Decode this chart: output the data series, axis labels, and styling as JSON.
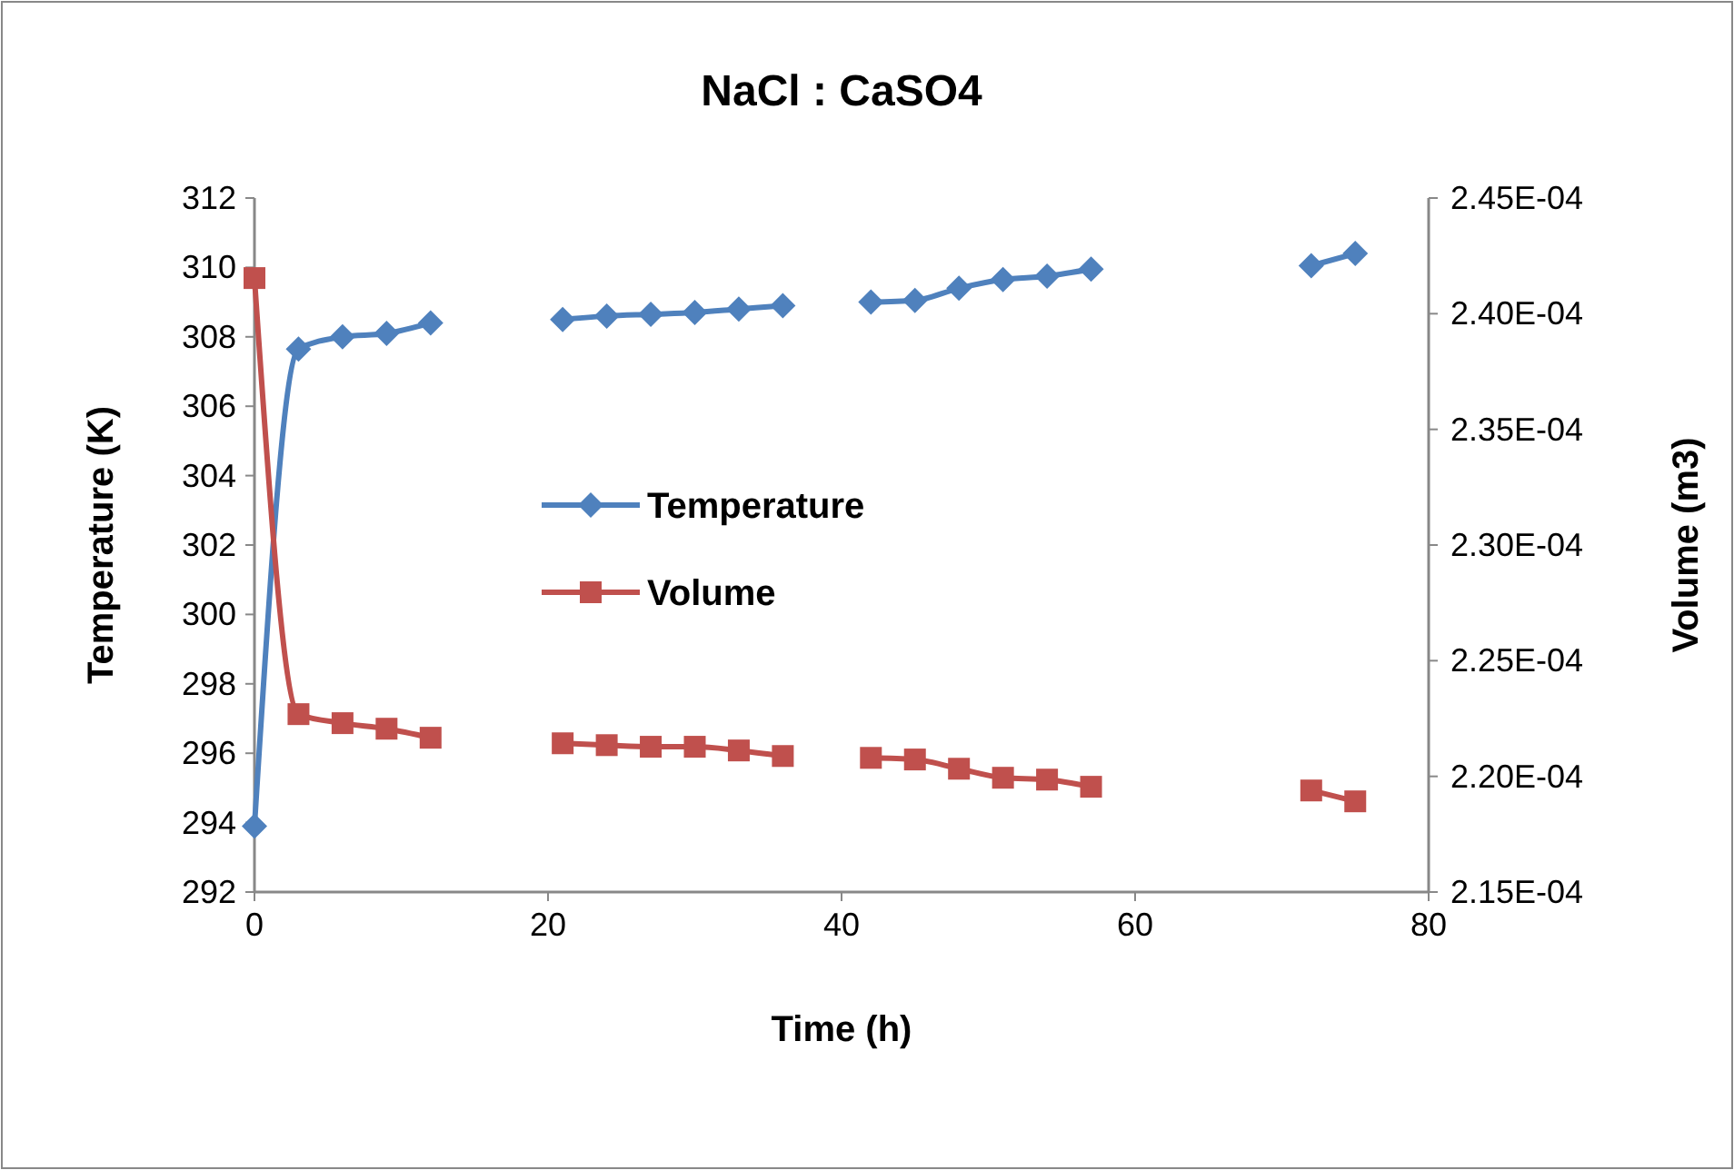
{
  "chart_data": {
    "type": "line",
    "title": "NaCl : CaSO4",
    "xlabel": "Time (h)",
    "ylabel": "Temperature (K)",
    "y2label": "Volume (m3)",
    "x": [
      0,
      3,
      6,
      9,
      12,
      15,
      18,
      21,
      24,
      27,
      30,
      33,
      36,
      39,
      42,
      45,
      48,
      51,
      54,
      57,
      60,
      63,
      66,
      69,
      72,
      75
    ],
    "xlim": [
      0,
      80
    ],
    "xticks": [
      0,
      20,
      40,
      60,
      80
    ],
    "ylim": [
      292,
      312
    ],
    "yticks": [
      292,
      294,
      296,
      298,
      300,
      302,
      304,
      306,
      308,
      310,
      312
    ],
    "y2lim": [
      0.000215,
      0.000245
    ],
    "y2ticks": [
      {
        "value": 0.000215,
        "label": "2.15E-04"
      },
      {
        "value": 0.00022,
        "label": "2.20E-04"
      },
      {
        "value": 0.000225,
        "label": "2.25E-04"
      },
      {
        "value": 0.00023,
        "label": "2.30E-04"
      },
      {
        "value": 0.000235,
        "label": "2.35E-04"
      },
      {
        "value": 0.00024,
        "label": "2.40E-04"
      },
      {
        "value": 0.000245,
        "label": "2.45E-04"
      }
    ],
    "grid": false,
    "legend": "left",
    "line_style": "solid",
    "series": [
      {
        "name": "Temperature",
        "color": "#4f81bd",
        "marker": "diamond",
        "values": [
          293.9,
          307.65,
          308.0,
          308.1,
          308.4,
          null,
          null,
          308.5,
          308.6,
          308.65,
          308.7,
          308.8,
          308.9,
          null,
          309.0,
          309.05,
          309.4,
          309.65,
          309.75,
          309.95,
          null,
          null,
          null,
          null,
          310.05,
          310.4
        ]
      },
      {
        "name": "Volume",
        "color": "#c0504d",
        "marker": "square",
        "axis": "y2",
        "values": [
          0.00024154,
          0.00022269,
          0.0002223,
          0.00022206,
          0.00022167,
          null,
          null,
          0.00022143,
          0.00022135,
          0.00022128,
          0.00022128,
          0.00022112,
          0.00022088,
          null,
          0.0002208,
          0.00022073,
          0.00022033,
          0.00021994,
          0.00021986,
          0.00021955,
          null,
          null,
          null,
          null,
          0.00021939,
          0.00021892
        ]
      }
    ]
  }
}
